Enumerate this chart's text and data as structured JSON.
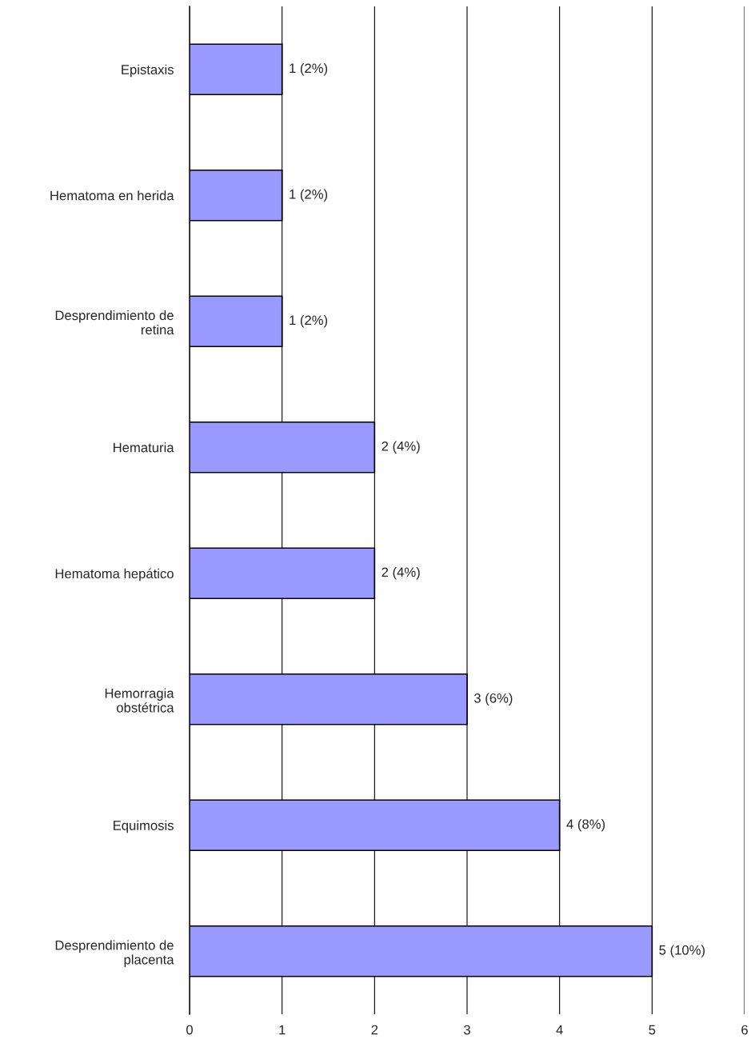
{
  "chart_data": {
    "type": "bar",
    "orientation": "horizontal",
    "categories": [
      "Epistaxis",
      "Hematoma en herida",
      "Desprendimiento de retina",
      "Hematuria",
      "Hematoma hepático",
      "Hemorragia obstétrica",
      "Equimosis",
      "Desprendimiento de placenta"
    ],
    "values": [
      1,
      1,
      1,
      2,
      2,
      3,
      4,
      5
    ],
    "value_labels": [
      "1 (2%)",
      "1 (2%)",
      "1 (2%)",
      "2 (4%)",
      "2 (4%)",
      "3 (6%)",
      "4 (8%)",
      "5 (10%)"
    ],
    "color": "#9999ff",
    "xlim": [
      0,
      6
    ],
    "xticks": [
      0,
      1,
      2,
      3,
      4,
      5,
      6
    ],
    "grid": "x"
  }
}
